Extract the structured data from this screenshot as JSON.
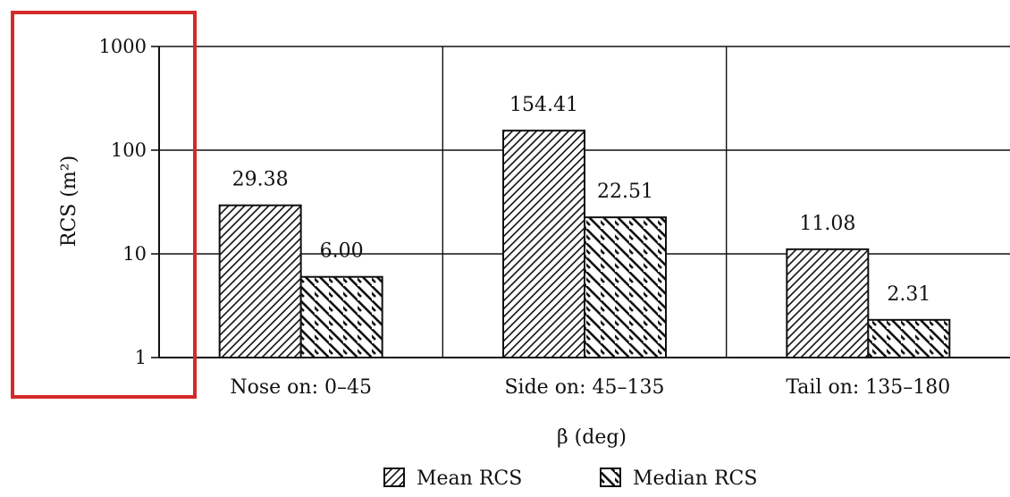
{
  "chart_data": {
    "type": "bar",
    "xlabel": "β (deg)",
    "ylabel": "RCS (m²)",
    "yscale": "log",
    "ylim": [
      1,
      1000
    ],
    "yticks": [
      "1",
      "10",
      "100",
      "1000"
    ],
    "grid": true,
    "legend_position": "bottom-center",
    "categories": [
      "Nose on:  0–45",
      "Side on: 45–135",
      "Tail on: 135–180"
    ],
    "series": [
      {
        "name": "Mean RCS",
        "values": [
          29.38,
          154.41,
          11.08
        ],
        "labels": [
          "29.38",
          "154.41",
          "11.08"
        ],
        "pattern": "fine-forward-hatch"
      },
      {
        "name": "Median RCS",
        "values": [
          6.0,
          22.51,
          2.31
        ],
        "labels": [
          "6.00",
          "22.51",
          "2.31"
        ],
        "pattern": "wide-back-hatch"
      }
    ],
    "annotations": [
      {
        "type": "highlight-box",
        "target": "y-axis label",
        "color": "#d42a2a"
      }
    ]
  }
}
